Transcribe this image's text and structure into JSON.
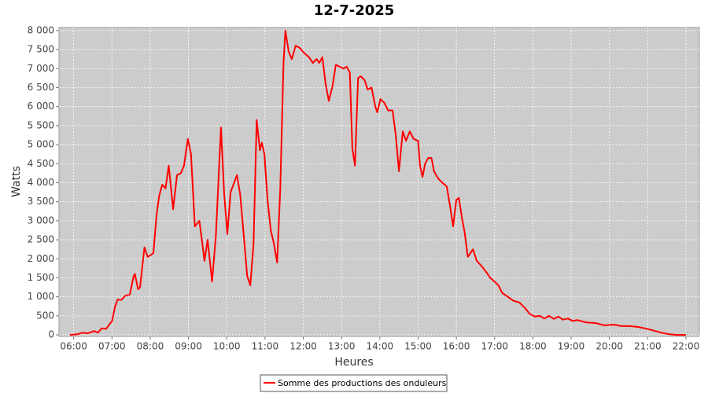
{
  "chart_data": {
    "type": "line",
    "title": "12-7-2025",
    "xlabel": "Heures",
    "ylabel": "Watts",
    "xlim": [
      "05:37",
      "22:21"
    ],
    "ylim": [
      -40,
      8080
    ],
    "grid": true,
    "legend": "bottom",
    "xticks": [
      "06:00",
      "07:00",
      "08:00",
      "09:00",
      "10:00",
      "11:00",
      "12:00",
      "13:00",
      "14:00",
      "15:00",
      "16:00",
      "17:00",
      "18:00",
      "19:00",
      "20:00",
      "21:00",
      "22:00"
    ],
    "yticks": [
      0,
      500,
      {
        "value": 1000,
        "label": "1 000"
      },
      {
        "value": 1500,
        "label": "1 500"
      },
      {
        "value": 2000,
        "label": "2 000"
      },
      {
        "value": 2500,
        "label": "2 500"
      },
      {
        "value": 3000,
        "label": "3 000"
      },
      {
        "value": 3500,
        "label": "3 500"
      },
      {
        "value": 4000,
        "label": "4 000"
      },
      {
        "value": 4500,
        "label": "4 500"
      },
      {
        "value": 5000,
        "label": "5 000"
      },
      {
        "value": 5500,
        "label": "5 500"
      },
      {
        "value": 6000,
        "label": "6 000"
      },
      {
        "value": 6500,
        "label": "6 500"
      },
      {
        "value": 7000,
        "label": "7 000"
      },
      {
        "value": 7500,
        "label": "7 500"
      },
      {
        "value": 8000,
        "label": "8 000"
      }
    ],
    "x": [
      "05:54",
      "06:07",
      "06:14",
      "06:22",
      "06:32",
      "06:38",
      "06:44",
      "06:51",
      "06:57",
      "07:00",
      "07:05",
      "07:09",
      "07:15",
      "07:21",
      "07:28",
      "07:34",
      "07:36",
      "07:41",
      "07:44",
      "07:51",
      "07:56",
      "08:01",
      "08:05",
      "08:10",
      "08:14",
      "08:19",
      "08:24",
      "08:29",
      "08:36",
      "08:42",
      "08:48",
      "08:53",
      "08:59",
      "09:04",
      "09:10",
      "09:17",
      "09:21",
      "09:25",
      "09:30",
      "09:37",
      "09:43",
      "09:51",
      "09:56",
      "10:01",
      "10:06",
      "10:16",
      "10:21",
      "10:27",
      "10:32",
      "10:37",
      "10:42",
      "10:47",
      "10:52",
      "10:55",
      "10:59",
      "11:04",
      "11:09",
      "11:14",
      "11:19",
      "11:24",
      "11:29",
      "11:32",
      "11:37",
      "11:42",
      "11:48",
      "11:54",
      "12:02",
      "12:09",
      "12:15",
      "12:21",
      "12:25",
      "12:30",
      "12:35",
      "12:40",
      "12:46",
      "12:51",
      "12:57",
      "13:03",
      "13:08",
      "13:13",
      "13:17",
      "13:21",
      "13:26",
      "13:30",
      "13:36",
      "13:41",
      "13:47",
      "13:53",
      "13:56",
      "14:01",
      "14:07",
      "14:13",
      "14:20",
      "14:25",
      "14:30",
      "14:36",
      "14:41",
      "14:47",
      "14:53",
      "15:00",
      "15:03",
      "15:07",
      "15:11",
      "15:16",
      "15:21",
      "15:25",
      "15:32",
      "15:38",
      "15:45",
      "15:50",
      "15:55",
      "16:00",
      "16:04",
      "16:09",
      "16:13",
      "16:18",
      "16:26",
      "16:32",
      "16:40",
      "16:47",
      "16:53",
      "17:00",
      "17:06",
      "17:12",
      "17:21",
      "17:29",
      "17:39",
      "17:48",
      "17:55",
      "18:03",
      "18:11",
      "18:18",
      "18:25",
      "18:33",
      "18:40",
      "18:47",
      "18:55",
      "19:02",
      "19:10",
      "19:23",
      "19:39",
      "19:52",
      "20:07",
      "20:19",
      "20:32",
      "20:44",
      "20:56",
      "21:08",
      "21:21",
      "21:33",
      "21:46",
      "22:00"
    ],
    "series": [
      {
        "name": "Somme des productions des onduleurs",
        "color": "#ff0000",
        "values": [
          0,
          20,
          60,
          40,
          100,
          60,
          170,
          160,
          300,
          350,
          750,
          930,
          920,
          1030,
          1060,
          1550,
          1600,
          1200,
          1250,
          2300,
          2050,
          2100,
          2150,
          3150,
          3650,
          3950,
          3850,
          4450,
          3300,
          4200,
          4250,
          4450,
          5150,
          4750,
          2850,
          3000,
          2500,
          1950,
          2500,
          1400,
          2600,
          5450,
          3700,
          2650,
          3750,
          4200,
          3700,
          2550,
          1550,
          1300,
          2400,
          5650,
          4850,
          5050,
          4750,
          3550,
          2750,
          2400,
          1900,
          3850,
          7150,
          8000,
          7450,
          7250,
          7600,
          7550,
          7400,
          7300,
          7150,
          7250,
          7150,
          7300,
          6600,
          6150,
          6550,
          7100,
          7050,
          7000,
          7050,
          6900,
          4900,
          4450,
          6750,
          6800,
          6700,
          6450,
          6500,
          6000,
          5850,
          6200,
          6100,
          5900,
          5900,
          5250,
          4300,
          5350,
          5100,
          5350,
          5150,
          5100,
          4450,
          4150,
          4500,
          4650,
          4650,
          4300,
          4100,
          4000,
          3900,
          3400,
          2850,
          3550,
          3600,
          3050,
          2700,
          2050,
          2250,
          1950,
          1800,
          1650,
          1500,
          1400,
          1300,
          1100,
          1000,
          900,
          850,
          700,
          550,
          480,
          500,
          430,
          500,
          420,
          480,
          400,
          430,
          370,
          390,
          330,
          310,
          250,
          270,
          230,
          230,
          210,
          170,
          120,
          60,
          20,
          0,
          0
        ]
      }
    ]
  }
}
